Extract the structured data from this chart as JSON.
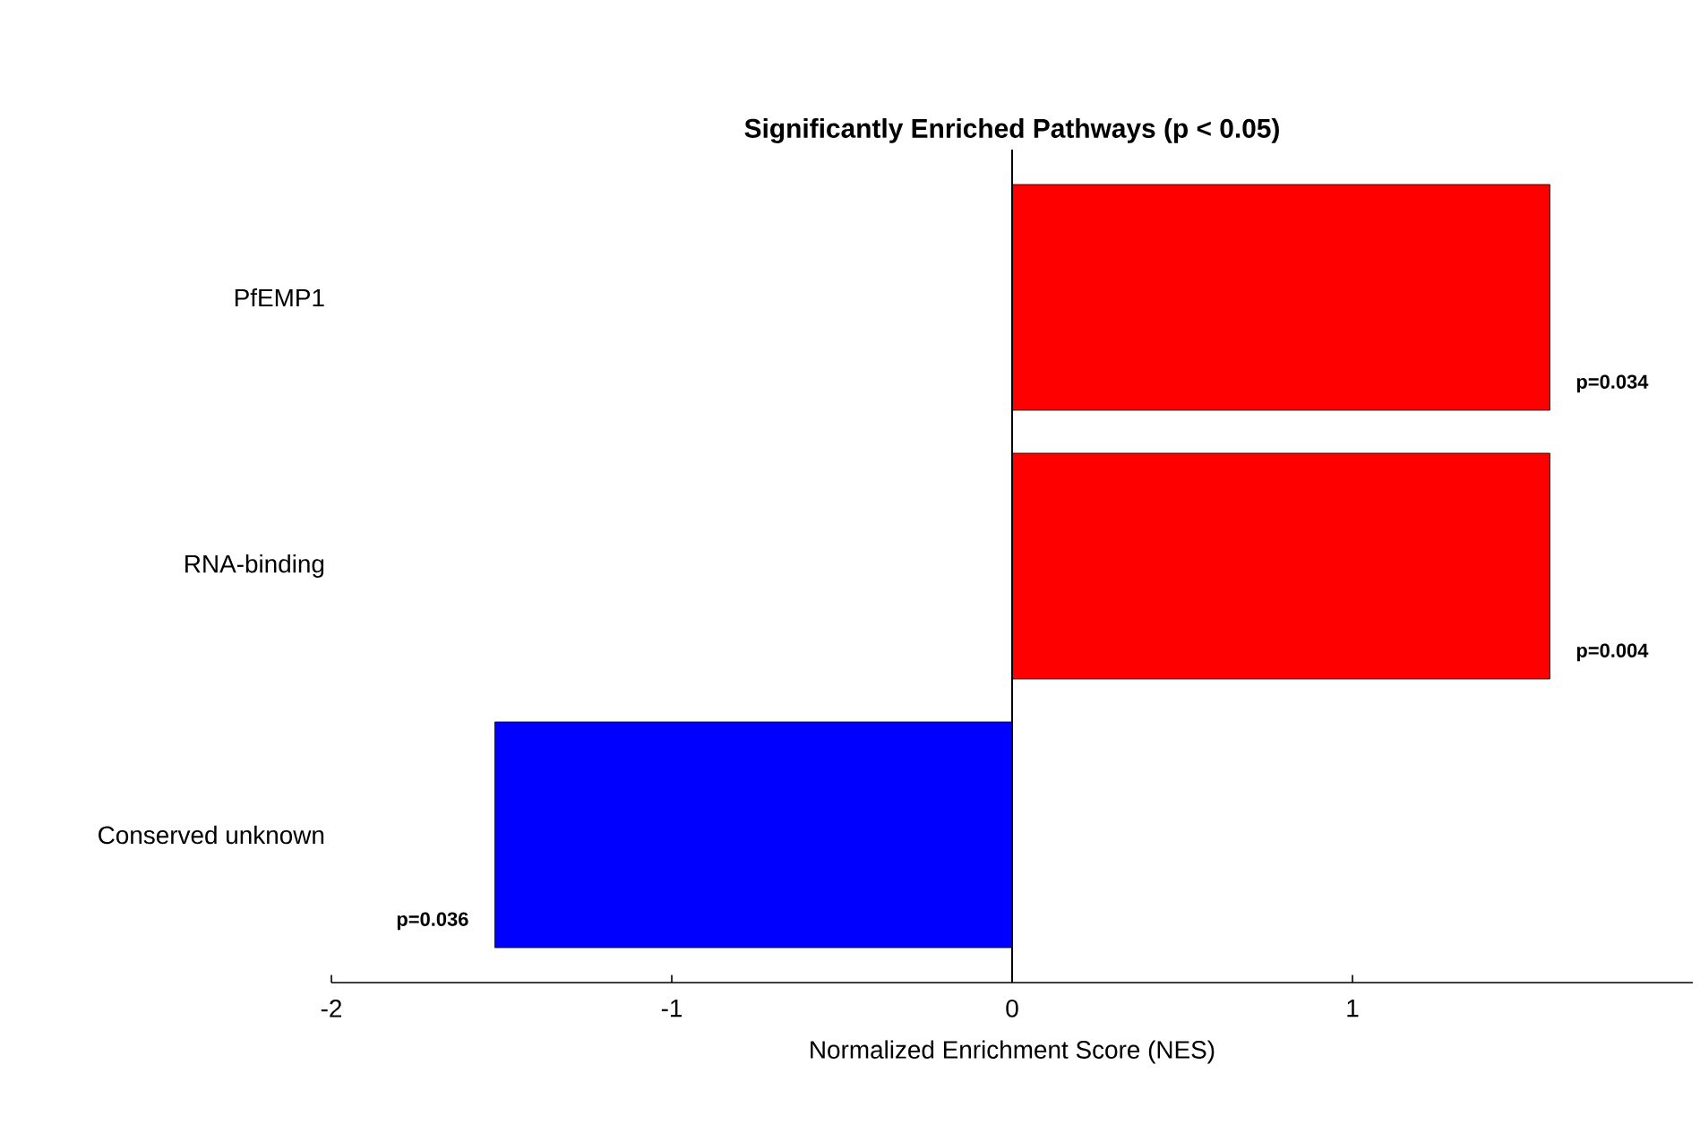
{
  "chart_data": {
    "type": "bar",
    "orientation": "horizontal",
    "title": "Significantly Enriched Pathways (p < 0.05)",
    "xlabel": "Normalized Enrichment Score (NES)",
    "categories": [
      "PfEMP1",
      "RNA-binding",
      "Conserved unknown"
    ],
    "values": [
      1.58,
      1.58,
      -1.52
    ],
    "colors": [
      "#ff0000",
      "#ff0000",
      "#0000ff"
    ],
    "xlim": [
      -2,
      2
    ],
    "xticks": [
      -2,
      -1,
      0,
      1
    ],
    "ref_lines": [
      {
        "axis": "x",
        "value": 0,
        "color": "#000000"
      }
    ],
    "annotations": [
      "p=0.034",
      "p=0.004",
      "p=0.036"
    ]
  }
}
